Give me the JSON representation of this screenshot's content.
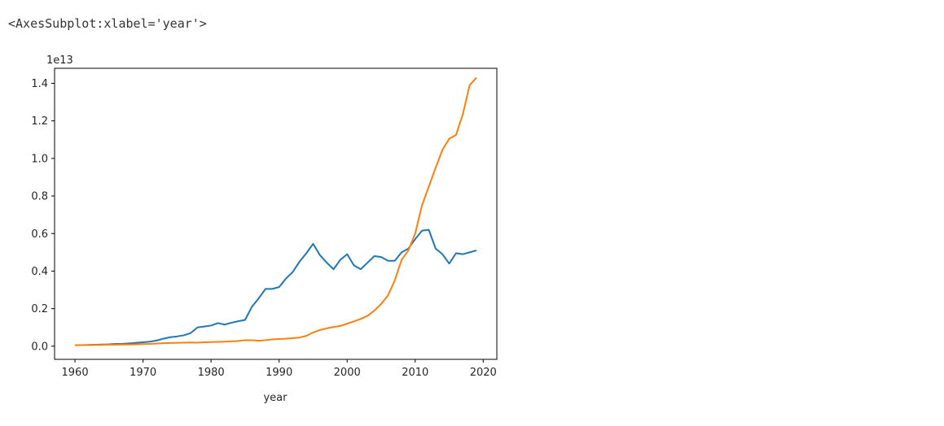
{
  "output_repr": "<AxesSubplot:xlabel='year'>",
  "chart_data": {
    "type": "line",
    "xlabel": "year",
    "ylabel": "",
    "offset_label": "1e13",
    "xlim": [
      1957,
      2022
    ],
    "ylim": [
      -0.07,
      1.48
    ],
    "xticks": [
      1960,
      1970,
      1980,
      1990,
      2000,
      2010,
      2020
    ],
    "yticks": [
      0.0,
      0.2,
      0.4,
      0.6,
      0.8,
      1.0,
      1.2,
      1.4
    ],
    "ytick_labels": [
      "0.0",
      "0.2",
      "0.4",
      "0.6",
      "0.8",
      "1.0",
      "1.2",
      "1.4"
    ],
    "grid": false,
    "x": [
      1960,
      1961,
      1962,
      1963,
      1964,
      1965,
      1966,
      1967,
      1968,
      1969,
      1970,
      1971,
      1972,
      1973,
      1974,
      1975,
      1976,
      1977,
      1978,
      1979,
      1980,
      1981,
      1982,
      1983,
      1984,
      1985,
      1986,
      1987,
      1988,
      1989,
      1990,
      1991,
      1992,
      1993,
      1994,
      1995,
      1996,
      1997,
      1998,
      1999,
      2000,
      2001,
      2002,
      2003,
      2004,
      2005,
      2006,
      2007,
      2008,
      2009,
      2010,
      2011,
      2012,
      2013,
      2014,
      2015,
      2016,
      2017,
      2018,
      2019
    ],
    "series": [
      {
        "color": "#1f77b4",
        "values": [
          0.005,
          0.006,
          0.007,
          0.008,
          0.009,
          0.01,
          0.012,
          0.013,
          0.015,
          0.018,
          0.021,
          0.024,
          0.03,
          0.04,
          0.048,
          0.052,
          0.058,
          0.07,
          0.1,
          0.105,
          0.11,
          0.123,
          0.115,
          0.125,
          0.133,
          0.14,
          0.21,
          0.255,
          0.305,
          0.305,
          0.315,
          0.36,
          0.395,
          0.45,
          0.495,
          0.545,
          0.485,
          0.445,
          0.41,
          0.46,
          0.49,
          0.43,
          0.41,
          0.445,
          0.48,
          0.475,
          0.455,
          0.455,
          0.5,
          0.52,
          0.57,
          0.615,
          0.62,
          0.52,
          0.49,
          0.44,
          0.495,
          0.49,
          0.5,
          0.51
        ]
      },
      {
        "color": "#ff7f0e",
        "values": [
          0.006,
          0.006,
          0.006,
          0.007,
          0.007,
          0.008,
          0.008,
          0.009,
          0.009,
          0.01,
          0.011,
          0.012,
          0.014,
          0.016,
          0.017,
          0.018,
          0.019,
          0.02,
          0.019,
          0.021,
          0.022,
          0.023,
          0.024,
          0.026,
          0.028,
          0.032,
          0.032,
          0.029,
          0.032,
          0.036,
          0.038,
          0.04,
          0.043,
          0.046,
          0.055,
          0.073,
          0.086,
          0.095,
          0.102,
          0.108,
          0.12,
          0.132,
          0.145,
          0.162,
          0.19,
          0.225,
          0.27,
          0.35,
          0.46,
          0.51,
          0.6,
          0.75,
          0.85,
          0.95,
          1.045,
          1.105,
          1.125,
          1.235,
          1.39,
          1.43
        ]
      }
    ]
  }
}
